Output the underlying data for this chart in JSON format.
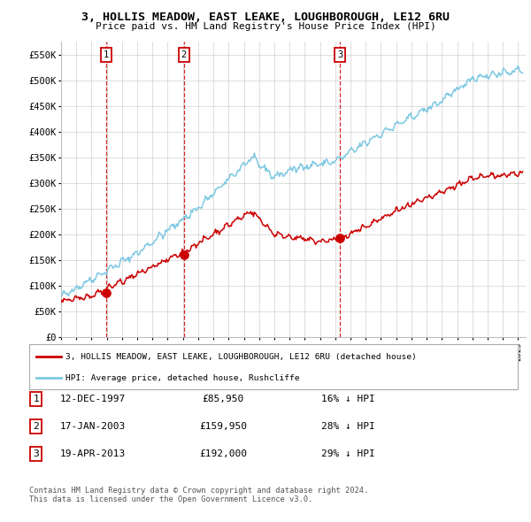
{
  "title": "3, HOLLIS MEADOW, EAST LEAKE, LOUGHBOROUGH, LE12 6RU",
  "subtitle": "Price paid vs. HM Land Registry's House Price Index (HPI)",
  "ylim": [
    0,
    575000
  ],
  "yticks": [
    0,
    50000,
    100000,
    150000,
    200000,
    250000,
    300000,
    350000,
    400000,
    450000,
    500000,
    550000
  ],
  "ytick_labels": [
    "£0",
    "£50K",
    "£100K",
    "£150K",
    "£200K",
    "£250K",
    "£300K",
    "£350K",
    "£400K",
    "£450K",
    "£500K",
    "£550K"
  ],
  "sale_dates": [
    1997.95,
    2003.05,
    2013.3
  ],
  "sale_prices": [
    85950,
    159950,
    192000
  ],
  "sale_labels": [
    "1",
    "2",
    "3"
  ],
  "hpi_color": "#7ec8e3",
  "price_color": "#cc0000",
  "dashed_color": "#cc0000",
  "background_color": "#ffffff",
  "grid_color": "#d0d0d0",
  "legend_entry1": "3, HOLLIS MEADOW, EAST LEAKE, LOUGHBOROUGH, LE12 6RU (detached house)",
  "legend_entry2": "HPI: Average price, detached house, Rushcliffe",
  "table_rows": [
    [
      "1",
      "12-DEC-1997",
      "£85,950",
      "16% ↓ HPI"
    ],
    [
      "2",
      "17-JAN-2003",
      "£159,950",
      "28% ↓ HPI"
    ],
    [
      "3",
      "19-APR-2013",
      "£192,000",
      "29% ↓ HPI"
    ]
  ],
  "footer": "Contains HM Land Registry data © Crown copyright and database right 2024.\nThis data is licensed under the Open Government Licence v3.0.",
  "xlim_start": 1995.0,
  "xlim_end": 2025.5
}
